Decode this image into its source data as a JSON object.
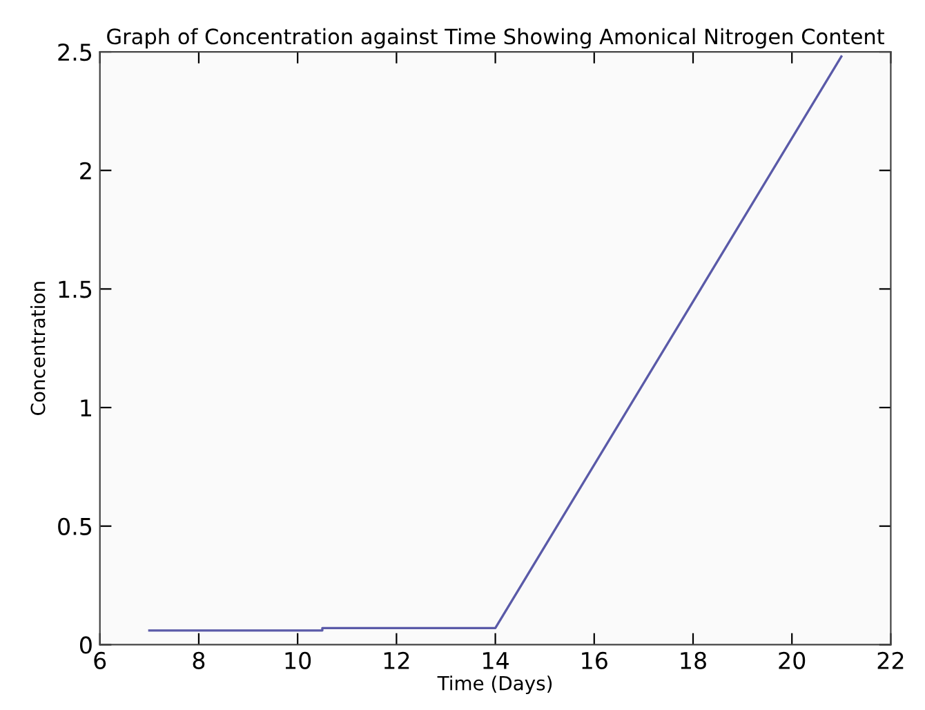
{
  "chart_data": {
    "type": "line",
    "title": "Graph of Concentration against Time Showing Amonical Nitrogen Content",
    "xlabel": "Time (Days)",
    "ylabel": "Concentration",
    "series": [
      {
        "color": "#5a5aa8",
        "x": [
          7,
          10.5,
          10.5,
          14,
          21
        ],
        "values": [
          0.06,
          0.06,
          0.07,
          0.07,
          2.48
        ]
      }
    ],
    "xlim": [
      6,
      22
    ],
    "xticks": [
      6,
      8,
      10,
      12,
      14,
      16,
      18,
      20,
      22
    ],
    "ylim": [
      0,
      2.5
    ],
    "yticks": [
      0,
      0.5,
      1,
      1.5,
      2,
      2.5
    ],
    "grid": false
  }
}
